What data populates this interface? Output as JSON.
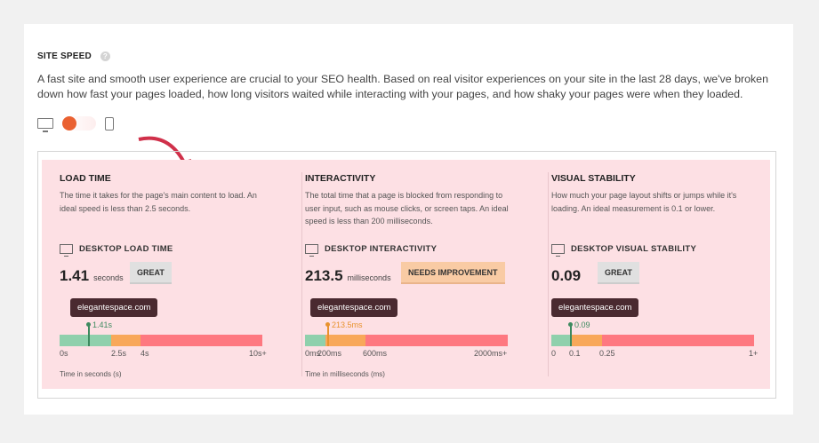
{
  "section": {
    "title": "SITE SPEED",
    "help_icon": "question-icon",
    "description": "A fast site and smooth user experience are crucial to your SEO health. Based on real visitor experiences on your site in the last 28 days, we've broken down how fast your pages loaded, how long visitors waited while interacting with your pages, and how shaky your pages were when they loaded."
  },
  "toggle": {
    "left_icon": "desktop-icon",
    "right_icon": "mobile-icon",
    "selected": "desktop",
    "accent": "#ea6131"
  },
  "metrics": [
    {
      "title": "LOAD TIME",
      "description": "The time it takes for the page's main content to load. An ideal speed is less than 2.5 seconds.",
      "device_label": "DESKTOP LOAD TIME",
      "value": "1.41",
      "unit": "seconds",
      "rating": "GREAT",
      "site": "elegantespace.com",
      "marker_label": "1.41s",
      "ticks": [
        "0s",
        "2.5s",
        "4s",
        "10s+"
      ],
      "axis_label": "Time in seconds (s)"
    },
    {
      "title": "INTERACTIVITY",
      "description": "The total time that a page is blocked from responding to user input, such as mouse clicks, or screen taps. An ideal speed is less than 200 milliseconds.",
      "device_label": "DESKTOP INTERACTIVITY",
      "value": "213.5",
      "unit": "milliseconds",
      "rating": "NEEDS IMPROVEMENT",
      "site": "elegantespace.com",
      "marker_label": "213.5ms",
      "ticks": [
        "0ms",
        "200ms",
        "600ms",
        "2000ms+"
      ],
      "axis_label": "Time in milliseconds (ms)"
    },
    {
      "title": "VISUAL STABILITY",
      "description": "How much your page layout shifts or jumps while it's loading. An ideal measurement is 0.1 or lower.",
      "device_label": "DESKTOP VISUAL STABILITY",
      "value": "0.09",
      "unit": "",
      "rating": "GREAT",
      "site": "elegantespace.com",
      "marker_label": "0.09",
      "ticks": [
        "0",
        "0.1",
        "0.25",
        "1+"
      ]
    }
  ],
  "colors": {
    "good": "#8fd0ac",
    "needs_improvement": "#f8a85a",
    "poor": "#fe7880",
    "panel": "#fde0e4"
  }
}
